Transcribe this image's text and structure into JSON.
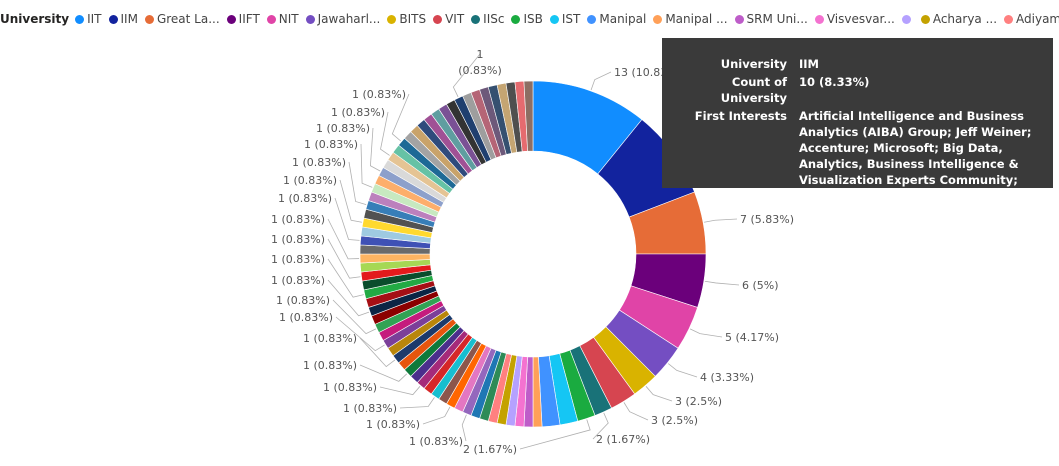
{
  "chart_data": {
    "type": "donut",
    "legend_title": "University",
    "legend_items": [
      {
        "name": "IIT",
        "color": "#118DFF"
      },
      {
        "name": "IIM",
        "color": "#12239E"
      },
      {
        "name": "Great La...",
        "color": "#E66C37"
      },
      {
        "name": "IIFT",
        "color": "#6B007B"
      },
      {
        "name": "NIT",
        "color": "#E044A7"
      },
      {
        "name": "Jawaharl...",
        "color": "#744EC2"
      },
      {
        "name": "BITS",
        "color": "#D9B300"
      },
      {
        "name": "VIT",
        "color": "#D64550"
      },
      {
        "name": "IISc",
        "color": "#197278"
      },
      {
        "name": "ISB",
        "color": "#1AAB40"
      },
      {
        "name": "IST",
        "color": "#15C6F4"
      },
      {
        "name": "Manipal",
        "color": "#4092FF"
      },
      {
        "name": "Manipal ...",
        "color": "#FFA058"
      },
      {
        "name": "SRM Uni...",
        "color": "#BE5DC9"
      },
      {
        "name": "Visvesvar...",
        "color": "#F472D0"
      },
      {
        "name": "",
        "color": "#B5A1FF"
      },
      {
        "name": "Acharya ...",
        "color": "#C4A200"
      },
      {
        "name": "Adiyaman",
        "color": "#FF8080"
      }
    ],
    "total": 120,
    "slices": [
      {
        "value": 13,
        "color": "#118DFF"
      },
      {
        "value": 10,
        "color": "#12239E"
      },
      {
        "value": 7,
        "color": "#E66C37"
      },
      {
        "value": 6,
        "color": "#6B007B"
      },
      {
        "value": 5,
        "color": "#E044A7"
      },
      {
        "value": 4,
        "color": "#744EC2"
      },
      {
        "value": 3,
        "color": "#D9B300"
      },
      {
        "value": 3,
        "color": "#D64550"
      },
      {
        "value": 2,
        "color": "#197278"
      },
      {
        "value": 2,
        "color": "#1AAB40"
      },
      {
        "value": 2,
        "color": "#15C6F4"
      },
      {
        "value": 2,
        "color": "#4092FF"
      },
      {
        "value": 1,
        "color": "#FFA058"
      },
      {
        "value": 1,
        "color": "#BE5DC9"
      },
      {
        "value": 1,
        "color": "#F472D0"
      },
      {
        "value": 1,
        "color": "#B5A1FF"
      },
      {
        "value": 1,
        "color": "#C4A200"
      },
      {
        "value": 1,
        "color": "#FF8080"
      },
      {
        "value": 1,
        "color": "#2E8B57"
      },
      {
        "value": 1,
        "color": "#1F77B4"
      },
      {
        "value": 1,
        "color": "#9467BD"
      },
      {
        "value": 1,
        "color": "#E377C2"
      },
      {
        "value": 1,
        "color": "#FF6600"
      },
      {
        "value": 1,
        "color": "#8C564B"
      },
      {
        "value": 1,
        "color": "#17BECF"
      },
      {
        "value": 1,
        "color": "#D62728"
      },
      {
        "value": 1,
        "color": "#A52A7A"
      },
      {
        "value": 1,
        "color": "#4A2E8C"
      },
      {
        "value": 1,
        "color": "#0E7A3A"
      },
      {
        "value": 1,
        "color": "#E6550D"
      },
      {
        "value": 1,
        "color": "#1B3A6B"
      },
      {
        "value": 1,
        "color": "#B8860B"
      },
      {
        "value": 1,
        "color": "#7B3F99"
      },
      {
        "value": 1,
        "color": "#C51B7D"
      },
      {
        "value": 1,
        "color": "#31A354"
      },
      {
        "value": 1,
        "color": "#8B0000"
      },
      {
        "value": 1,
        "color": "#0B2545"
      },
      {
        "value": 1,
        "color": "#A50F15"
      },
      {
        "value": 1,
        "color": "#22AA44"
      },
      {
        "value": 1,
        "color": "#0A4D2C"
      },
      {
        "value": 1,
        "color": "#E31A1C"
      },
      {
        "value": 1,
        "color": "#A6D854"
      },
      {
        "value": 1,
        "color": "#FDB462"
      },
      {
        "value": 1,
        "color": "#6A6A6A"
      },
      {
        "value": 1,
        "color": "#3F51B5"
      },
      {
        "value": 1,
        "color": "#9ECAE1"
      },
      {
        "value": 1,
        "color": "#FFD92F"
      },
      {
        "value": 1,
        "color": "#525252"
      },
      {
        "value": 1,
        "color": "#377EB8"
      },
      {
        "value": 1,
        "color": "#BC80BD"
      },
      {
        "value": 1,
        "color": "#C7E9C0"
      },
      {
        "value": 1,
        "color": "#FDAE6B"
      },
      {
        "value": 1,
        "color": "#8DA0CB"
      },
      {
        "value": 1,
        "color": "#D9D9D9"
      },
      {
        "value": 1,
        "color": "#E5C494"
      },
      {
        "value": 1,
        "color": "#66C2A5"
      },
      {
        "value": 1,
        "color": "#1D6996"
      },
      {
        "value": 1,
        "color": "#A3A3A3"
      },
      {
        "value": 1,
        "color": "#C9A36A"
      },
      {
        "value": 1,
        "color": "#2F4B7C"
      },
      {
        "value": 1,
        "color": "#A05195"
      },
      {
        "value": 1,
        "color": "#5F9EA0"
      },
      {
        "value": 1,
        "color": "#7A5195"
      },
      {
        "value": 1,
        "color": "#333333"
      },
      {
        "value": 1,
        "color": "#1F3F6F"
      },
      {
        "value": 1,
        "color": "#9E9E9E"
      },
      {
        "value": 1,
        "color": "#B56576"
      },
      {
        "value": 1,
        "color": "#6D597A"
      },
      {
        "value": 1,
        "color": "#355070"
      },
      {
        "value": 1,
        "color": "#C5A572"
      },
      {
        "value": 1,
        "color": "#4F4F4F"
      },
      {
        "value": 1,
        "color": "#E56B6F"
      },
      {
        "value": 1,
        "color": "#8D6E63"
      }
    ],
    "labels": [
      {
        "text": "13 (10.83%)"
      },
      {
        "text": "10 (8.33%)"
      },
      {
        "text": "7 (5.83%)"
      },
      {
        "text": "6 (5%)"
      },
      {
        "text": "5 (4.17%)"
      },
      {
        "text": "4 (3.33%)"
      },
      {
        "text": "3 (2.5%)"
      },
      {
        "text": "3 (2.5%)"
      },
      {
        "text": "2 (1.67%)"
      },
      {
        "text": "2 (1.67%)"
      },
      {
        "text": "1 (0.83%)"
      },
      {
        "text": "1 (0.83%)"
      },
      {
        "text": "1 (0.83%)"
      },
      {
        "text": "1 (0.83%)"
      },
      {
        "text": "1 (0.83%)"
      },
      {
        "text": "1 (0.83%)"
      },
      {
        "text": "1 (0.83%)"
      },
      {
        "text": "1 (0.83%)"
      },
      {
        "text": "1 (0.83%)"
      },
      {
        "text": "1 (0.83%)"
      },
      {
        "text": "1 (0.83%)"
      },
      {
        "text": "1 (0.83%)"
      },
      {
        "text": "1 (0.83%)"
      },
      {
        "text": "1 (0.83%)"
      },
      {
        "text": "1 (0.83%)"
      },
      {
        "text": "1 (0.83%)"
      },
      {
        "text": "1 (0.83%)"
      },
      {
        "text": "1 (0.83%)"
      },
      {
        "text": "1 (0.83%)"
      },
      {
        "text": "1"
      },
      {
        "text": "(0.83%)"
      }
    ]
  },
  "tooltip": {
    "rows": [
      {
        "label": "University",
        "value": "IIM"
      },
      {
        "label": "Count of University",
        "value": "10 (8.33%)"
      },
      {
        "label": "First Interests",
        "value": "Artificial Intelligence and Business Analytics (AIBA) Group; Jeff Weiner; Accenture; Microsoft; Big Data, Analytics, Business Intelligence & Visualization Experts Community; Procter & Gamble"
      }
    ]
  }
}
